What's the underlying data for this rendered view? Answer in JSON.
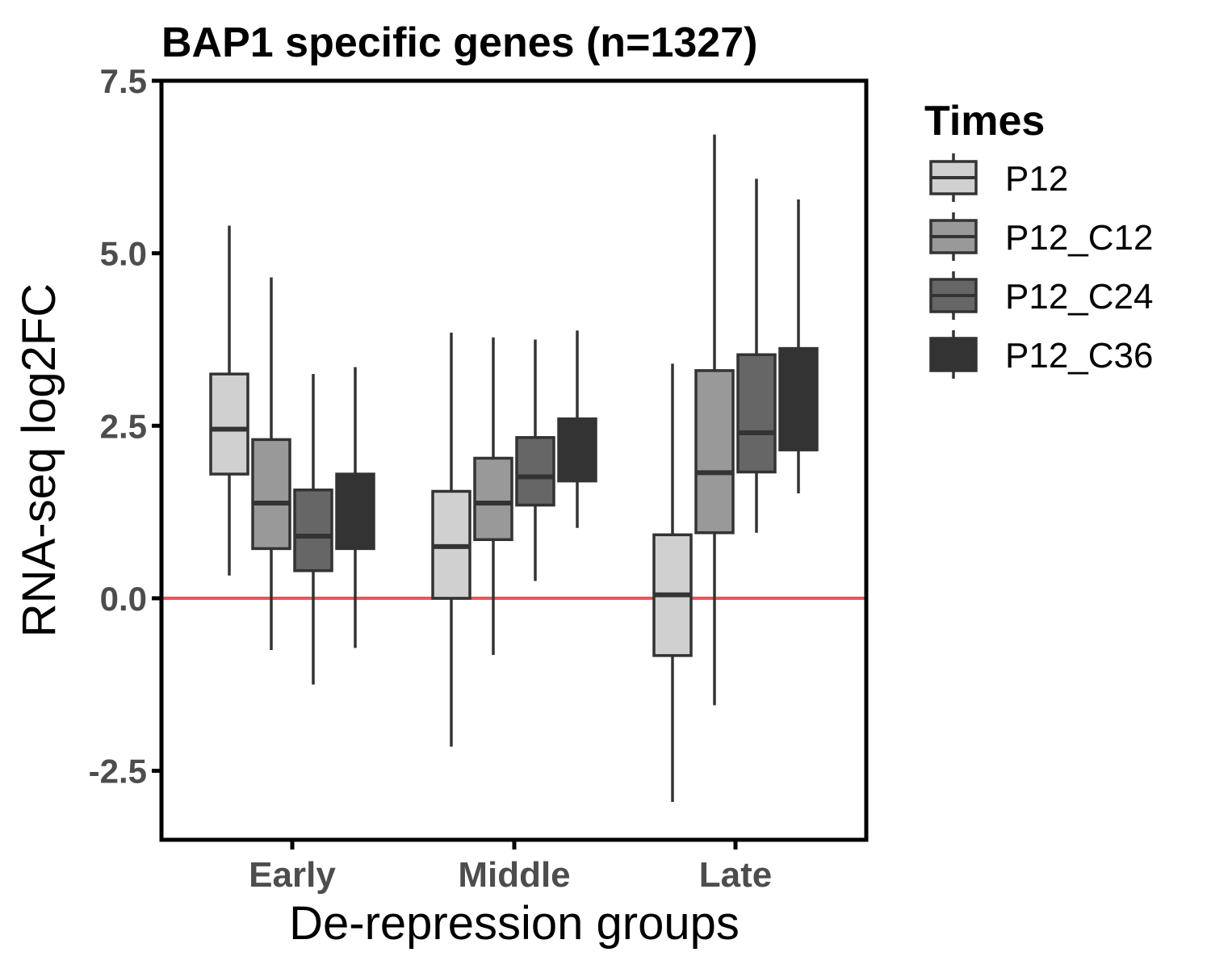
{
  "chart_data": {
    "type": "boxplot",
    "title": "BAP1 specific genes (n=1327)",
    "xlabel": "De-repression groups",
    "ylabel": "RNA-seq log2FC",
    "ylim": [
      -3.5,
      7.5
    ],
    "yticks": [
      -2.5,
      0.0,
      2.5,
      5.0,
      7.5
    ],
    "ytick_labels": [
      "-2.5",
      "0.0",
      "2.5",
      "5.0",
      "7.5"
    ],
    "categories": [
      "Early",
      "Middle",
      "Late"
    ],
    "reference_line": {
      "y": 0,
      "color": "#e8555a"
    },
    "legend": {
      "title": "Times",
      "position": "right"
    },
    "grid": false,
    "series": [
      {
        "name": "P12",
        "color": "#d0d0d0",
        "boxes": [
          {
            "min": 0.33,
            "q1": 1.8,
            "median": 2.45,
            "q3": 3.25,
            "max": 5.4
          },
          {
            "min": -2.15,
            "q1": 0.0,
            "median": 0.75,
            "q3": 1.55,
            "max": 3.85
          },
          {
            "min": -2.95,
            "q1": -0.83,
            "median": 0.05,
            "q3": 0.92,
            "max": 3.4
          }
        ]
      },
      {
        "name": "P12_C12",
        "color": "#999999",
        "boxes": [
          {
            "min": -0.75,
            "q1": 0.72,
            "median": 1.38,
            "q3": 2.3,
            "max": 4.65
          },
          {
            "min": -0.82,
            "q1": 0.85,
            "median": 1.38,
            "q3": 2.03,
            "max": 3.78
          },
          {
            "min": -1.55,
            "q1": 0.95,
            "median": 1.82,
            "q3": 3.3,
            "max": 6.72
          }
        ]
      },
      {
        "name": "P12_C24",
        "color": "#666666",
        "boxes": [
          {
            "min": -1.25,
            "q1": 0.4,
            "median": 0.9,
            "q3": 1.57,
            "max": 3.25
          },
          {
            "min": 0.25,
            "q1": 1.35,
            "median": 1.76,
            "q3": 2.33,
            "max": 3.75
          },
          {
            "min": 0.95,
            "q1": 1.83,
            "median": 2.4,
            "q3": 3.53,
            "max": 6.08
          }
        ]
      },
      {
        "name": "P12_C36",
        "color": "#333333",
        "boxes": [
          {
            "min": -0.72,
            "q1": 0.72,
            "median": 1.28,
            "q3": 1.8,
            "max": 3.35
          },
          {
            "min": 1.02,
            "q1": 1.7,
            "median": 2.2,
            "q3": 2.6,
            "max": 3.88
          },
          {
            "min": 1.52,
            "q1": 2.15,
            "median": 3.0,
            "q3": 3.62,
            "max": 5.78
          }
        ]
      }
    ]
  }
}
